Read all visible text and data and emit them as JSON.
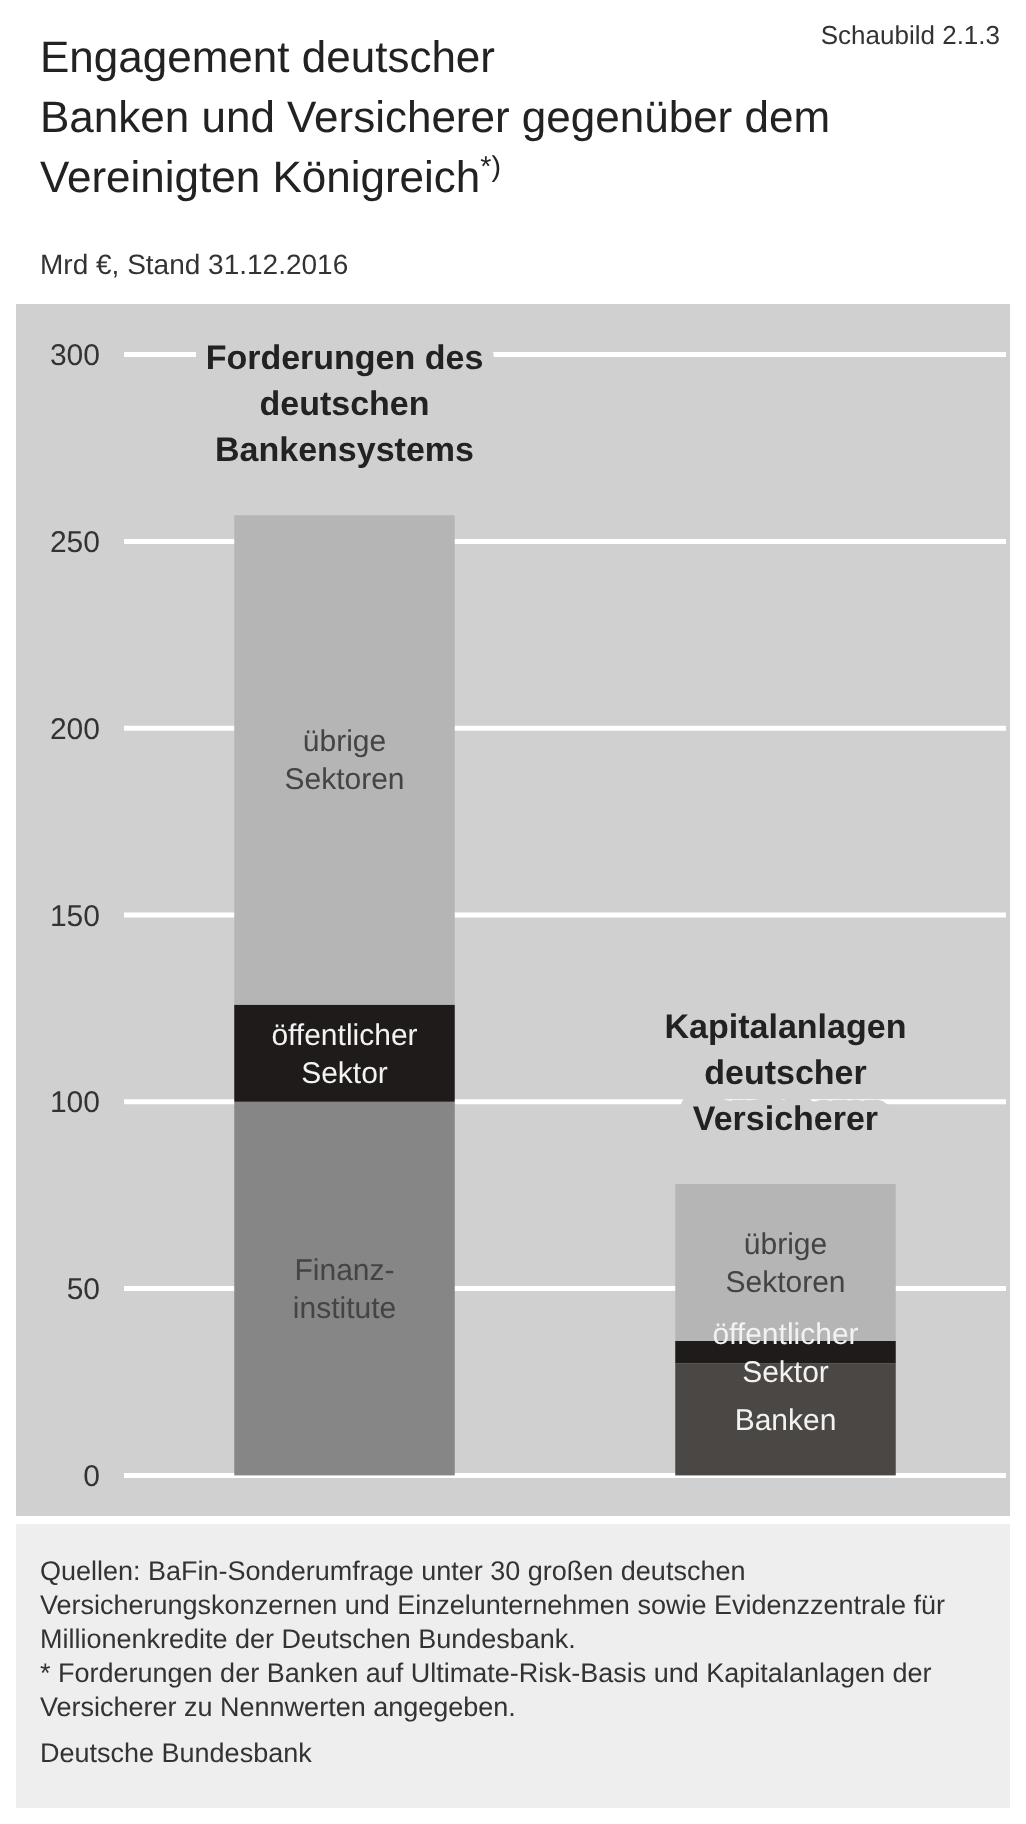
{
  "chart_data": {
    "type": "bar",
    "title": "Engagement deutscher Banken und Versicherer gegenüber dem Vereinigten Königreich$^{*)}$",
    "subtitle": "Mrd €, Stand 31.12.2016",
    "categories": [
      "Forderungen des deutschen Bankensystems",
      "Kapitalanlagen deutscher Versicherer"
    ],
    "stacked": true,
    "series": [
      {
        "colors": [
          "#868686",
          "#4b4744"
        ],
        "values": [
          100,
          30
        ]
      },
      {
        "color": "#1e1b1a",
        "values": [
          26,
          6
        ]
      },
      {
        "color": "#b5b5b5",
        "values": [
          131,
          42
        ]
      }
    ],
    "ylim": [
      0,
      300
    ],
    "yticks": [
      0,
      50,
      100,
      150,
      200,
      250,
      300
    ],
    "grid": true,
    "annotations": [
      "Schaubild 2.1.3",
      "Finanz-\ninstitute",
      "Banken",
      "öffentlicher\nSektor",
      "öffentlicher\nSektor",
      "übrige\nSektoren",
      "übrige\nSektoren",
      "Quellen: BaFin-Sonderumfrage unter 30 großen deutschen Versicherungskonzernen und Einzelunternehmen sowie Evidenzzentrale für Millionenkredite der Deutschen Bundesbank.",
      "* Forderungen der Banken auf Ultimate-Risk-Basis und Kapitalanlagen der Versicherer zu Nennwerten angegeben.",
      "Deutsche Bundesbank"
    ]
  }
}
